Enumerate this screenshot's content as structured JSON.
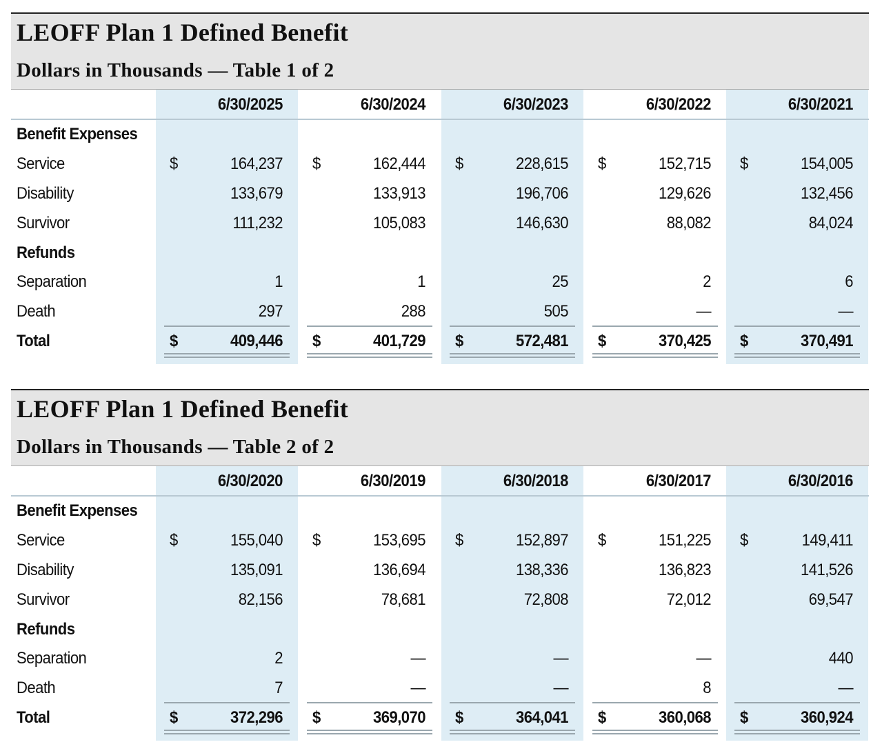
{
  "tables": [
    {
      "title": "LEOFF Plan 1 Defined Benefit",
      "subtitle": "Dollars in Thousands — Table 1 of 2",
      "columns": [
        "6/30/2025",
        "6/30/2024",
        "6/30/2023",
        "6/30/2022",
        "6/30/2021"
      ],
      "section_benefit": "Benefit Expenses",
      "section_refunds": "Refunds",
      "currency_symbol": "$",
      "rows": {
        "service": {
          "label": "Service",
          "values": [
            "164,237",
            "162,444",
            "228,615",
            "152,715",
            "154,005"
          ]
        },
        "disability": {
          "label": "Disability",
          "values": [
            "133,679",
            "133,913",
            "196,706",
            "129,626",
            "132,456"
          ]
        },
        "survivor": {
          "label": "Survivor",
          "values": [
            "111,232",
            "105,083",
            "146,630",
            "88,082",
            "84,024"
          ]
        },
        "separation": {
          "label": "Separation",
          "values": [
            "1",
            "1",
            "25",
            "2",
            "6"
          ]
        },
        "death": {
          "label": "Death",
          "values": [
            "297",
            "288",
            "505",
            "—",
            "—"
          ]
        },
        "total": {
          "label": "Total",
          "values": [
            "409,446",
            "401,729",
            "572,481",
            "370,425",
            "370,491"
          ]
        }
      }
    },
    {
      "title": "LEOFF Plan 1 Defined Benefit",
      "subtitle": "Dollars in Thousands — Table 2 of 2",
      "columns": [
        "6/30/2020",
        "6/30/2019",
        "6/30/2018",
        "6/30/2017",
        "6/30/2016"
      ],
      "section_benefit": "Benefit Expenses",
      "section_refunds": "Refunds",
      "currency_symbol": "$",
      "rows": {
        "service": {
          "label": "Service",
          "values": [
            "155,040",
            "153,695",
            "152,897",
            "151,225",
            "149,411"
          ]
        },
        "disability": {
          "label": "Disability",
          "values": [
            "135,091",
            "136,694",
            "138,336",
            "136,823",
            "141,526"
          ]
        },
        "survivor": {
          "label": "Survivor",
          "values": [
            "82,156",
            "78,681",
            "72,808",
            "72,012",
            "69,547"
          ]
        },
        "separation": {
          "label": "Separation",
          "values": [
            "2",
            "—",
            "—",
            "—",
            "440"
          ]
        },
        "death": {
          "label": "Death",
          "values": [
            "7",
            "—",
            "—",
            "8",
            "—"
          ]
        },
        "total": {
          "label": "Total",
          "values": [
            "372,296",
            "369,070",
            "364,041",
            "360,068",
            "360,924"
          ]
        }
      }
    }
  ],
  "colors": {
    "header_bg": "#e5e5e5",
    "column_shade": "#deedf5",
    "rule": "#9aa7ae"
  }
}
